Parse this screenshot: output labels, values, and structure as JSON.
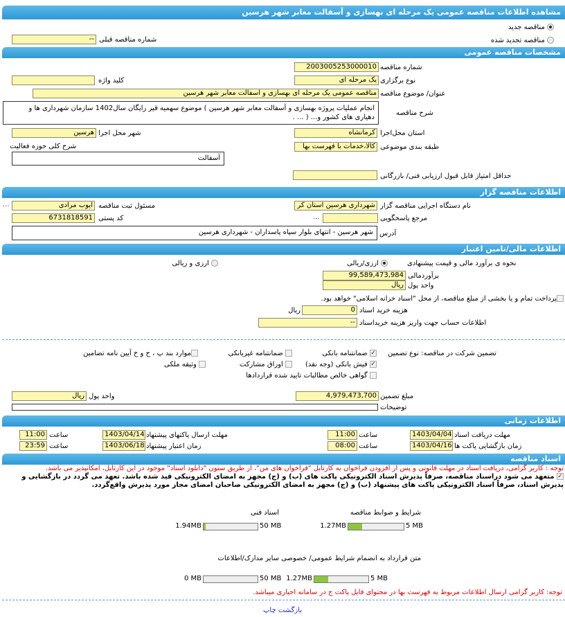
{
  "title": "مشاهده اطلاعات مناقصه عمومی یک مرحله ای بهسازی و آسفالت معابر شهر هرسین",
  "tender_type": {
    "new": "مناقصه جدید",
    "renewed": "مناقصه تجدید شده",
    "selected": "new",
    "prev_label": "شماره مناقصه قبلی",
    "prev_value": "--"
  },
  "general": {
    "header": "مشخصات مناقصه عمومی",
    "number_label": "شماره مناقصه",
    "number": "2003005253000010",
    "hold_label": "نوع برگزاری",
    "hold": "یک مرحله ای",
    "keyword_label": "کلید واژه",
    "keyword": "",
    "subject_label": "عنوان/ موضوع مناقصه",
    "subject": "مناقصه عمومی یک مرحله ای بهسازی و آسفالت معابر شهر هرسین",
    "desc_label": "شرح مناقصه",
    "desc": "انجام عملیات پروژه بهسازی و آسفالت معابر شهر هرسین ) موضوع سهمیه قیر رایگان سال1402 سازمان شهرداری ها و دهیاری های کشور و... ( ... .",
    "province_label": "استان محل‌اجرا",
    "province": "کرمانشاه",
    "city_label": "شهر محل اجرا",
    "city": "هرسین",
    "class_label": "طبقه بندی موضوعی",
    "class": "کالا،خدمات با فهرست بها",
    "activity_label": "شرح کلی حوزه فعالیت",
    "activity": "آسفالت",
    "minscore_label": "حداقل امتیاز قابل قبول ارزیابی فنی/ بازرگانی",
    "minscore": ""
  },
  "organizer": {
    "header": "اطلاعات مناقصه گزار",
    "org_label": "نام دستگاه اجرایی مناقصه گزار",
    "org": "شهرداری هرسین استان کر",
    "resp_label": "مسئول ثبت مناقصه",
    "resp": "ایوب مرادی",
    "ref_label": "مرجع پاسخگویی",
    "ref": "",
    "postal_label": "کد پستی",
    "postal": "6731818591",
    "address_label": "آدرس",
    "address": "شهر هرسین - انتهای بلوار سپاه پاسداران - شهرداری هرسین",
    "more": "..."
  },
  "finance": {
    "header": "اطلاعات مالی/تامین اعتبار",
    "method_label": "نحوه ی برآورد مالی و قیمت پیشنهادی",
    "opt1": "ارزی/ریالی",
    "opt2": "ارزی و ریالی",
    "selected": "opt1",
    "estimate_label": "برآوردمالی",
    "estimate": "99,589,473,984",
    "currency_label": "واحد پول",
    "currency": "ریال",
    "treasury": "پرداخت تمام و یا بخشی از مبلغ مناقصه، از محل \"اسناد خزانه اسلامی\" خواهد بود.",
    "doccost_label": "هزینه خرید اسناد",
    "doccost": "0",
    "doccost_unit": "ریال",
    "account_label": "اطلاعات حساب جهت واریز هزینه خریداسناد",
    "account": "--",
    "guarantee_label": "تضمین شرکت در مناقصه: نوع تضمین",
    "guarantees": [
      {
        "label": "ضمانتنامه بانکی",
        "checked": true
      },
      {
        "label": "ضمانتنامه غیربانکی",
        "checked": false
      },
      {
        "label": "موارد بند پ ، ح و خ آیین نامه تضامین",
        "checked": false
      },
      {
        "label": "فیش بانکی (وجه نقد)",
        "checked": true
      },
      {
        "label": "اوراق مشارکت",
        "checked": false
      },
      {
        "label": "وثیقه ملکی",
        "checked": false
      },
      {
        "label": "گواهی خالص مطالبات تایید شده قراردادها",
        "checked": false
      }
    ],
    "amount_label": "مبلغ تضمین",
    "amount": "4,979,473,700",
    "amount_currency_label": "واحد پول",
    "amount_currency": "ریال",
    "notes_label": "توضیحات",
    "notes": ""
  },
  "timing": {
    "header": "اطلاعات زمانی",
    "time_label": "ساعت",
    "receive_label": "مهلت دریافت اسناد",
    "receive_date": "1403/04/04",
    "receive_time": "11:00",
    "send_label": "مهلت ارسال پاکتهای پیشنهاد",
    "send_date": "1403/04/14",
    "send_time": "11:00",
    "open_label": "زمان بازگشایی پاکت ها",
    "open_date": "1403/04/16",
    "open_time": "08:00",
    "valid_label": "زمان اعتبار پیشنهاد",
    "valid_date": "1403/06/18",
    "valid_time": "23:59"
  },
  "docs": {
    "header": "اسناد مناقصه",
    "note1": "توجه : کاربر گرامی، دریافت اسناد در مهلت قانونی و پس از افزودن فراخوان به کارتابل \"فراخوان های من\"، از طریق ستون \"دانلود اسناد\" موجود در این کارتابل، امکانپذیر می باشد.",
    "commit": "متعهد می شود دراسناد مناقصه، صرفاً پذیرش اسناد الکترونیکی پاکت های (ب) و (ج) مجهز به امضای الکترونیکی قید شده باشد. تعهد می گردد در بازگشایی و پذیرش اسناد، صرفاً اسناد الکترونیکی پاکت های پیشنهاد (ب) و (ج) مجهز به امضای الکترونیکی صاحبان امضای مجاز مورد پذیرش واقع‌گردد.",
    "files": [
      {
        "label": "شرایط و ضوابط مناقصه",
        "used": "1.27MB",
        "max": "5 MB",
        "fraction": 0.254
      },
      {
        "label": "اسناد فنی",
        "used": "1.94MB",
        "max": "50 MB",
        "fraction": 0.039
      },
      {
        "label": "متن قرارداد به انضمام شرایط عمومی/ خصوصی",
        "used": "1.27MB",
        "max": "5 MB",
        "fraction": 0.254
      },
      {
        "label": "سایر مدارک/اطلاعات",
        "used": "0 MB",
        "max": "50 MB",
        "fraction": 0
      }
    ],
    "note2": "توجه: کاربر گرامی ارسال اطلاعات مربوط به فهرست بها در محتوای فایل پاکت ج در سامانه اجباری میباشد."
  },
  "footer": {
    "print": "چاپ",
    "back": "بازگشت"
  },
  "colors": {
    "header": "#3aa3dc",
    "input": "#fdf8b0",
    "progress": "#8cc63f",
    "warning": "#e00000"
  }
}
